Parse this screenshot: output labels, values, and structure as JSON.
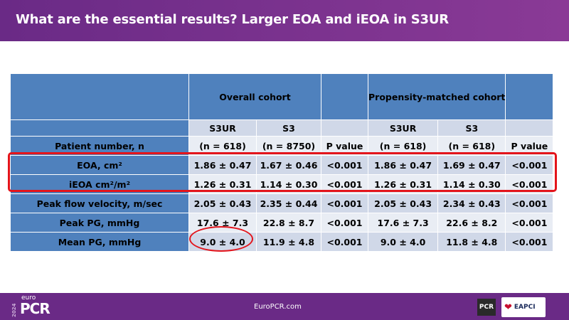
{
  "header": {
    "title": "What are the essential results? Larger EOA and iEOA in S3UR"
  },
  "table": {
    "group_overall": "Overall cohort",
    "group_matched": "Propensity-matched cohort",
    "subheader": [
      "S3UR",
      "S3",
      "",
      "S3UR",
      "S3",
      ""
    ],
    "patient_row": {
      "label": "Patient number, n",
      "cells": [
        "(n = 618)",
        "(n = 8750)",
        "P value",
        "(n = 618)",
        "(n = 618)",
        "P value"
      ]
    },
    "rows": [
      {
        "label": "EOA, cm²",
        "cells": [
          "1.86 ± 0.47",
          "1.67 ± 0.46",
          "<0.001",
          "1.86 ± 0.47",
          "1.69 ± 0.47",
          "<0.001"
        ]
      },
      {
        "label": "iEOA cm²/m²",
        "cells": [
          "1.26 ± 0.31",
          "1.14 ± 0.30",
          "<0.001",
          "1.26 ± 0.31",
          "1.14 ± 0.30",
          "<0.001"
        ]
      },
      {
        "label": "Peak flow velocity, m/sec",
        "cells": [
          "2.05 ± 0.43",
          "2.35 ± 0.44",
          "<0.001",
          "2.05 ± 0.43",
          "2.34 ± 0.43",
          "<0.001"
        ]
      },
      {
        "label": "Peak PG, mmHg",
        "cells": [
          "17.6 ± 7.3",
          "22.8 ± 8.7",
          "<0.001",
          "17.6 ± 7.3",
          "22.6 ± 8.2",
          "<0.001"
        ]
      },
      {
        "label": "Mean PG, mmHg",
        "cells": [
          "9.0 ± 4.0",
          "11.9 ± 4.8",
          "<0.001",
          "9.0 ± 4.0",
          "11.8 ± 4.8",
          "<0.001"
        ]
      }
    ]
  },
  "footer": {
    "year": "2024",
    "brand_small": "euro",
    "brand_big": "PCR",
    "url": "EuroPCR.com",
    "badge_pcr": "PCR",
    "badge_eapci": "EAPCI"
  },
  "colors": {
    "header_bg": "#6a2a86",
    "table_header_blue": "#4f81bd",
    "row_light": "#d0d8e8",
    "row_lighter": "#e9edf4",
    "highlight_red": "#e3141b"
  }
}
